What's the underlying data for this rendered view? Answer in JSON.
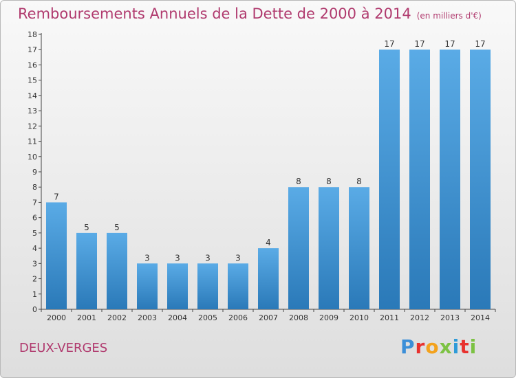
{
  "title": "Remboursements Annuels de la Dette de 2000 à 2014",
  "subtitle": "(en milliers d'€)",
  "commune": "DEUX-VERGES",
  "logo": {
    "letters": [
      "P",
      "r",
      "o",
      "x",
      "i",
      "t",
      "i"
    ],
    "colors": [
      "#3c8fd8",
      "#e8312e",
      "#f3a21d",
      "#7cc243",
      "#2e9bd8",
      "#e8312e",
      "#7cc243"
    ]
  },
  "colors": {
    "bar_top": "#5aabe6",
    "bar_bottom": "#2a79b8",
    "title": "#b03a6e"
  },
  "chart_data": {
    "type": "bar",
    "categories": [
      "2000",
      "2001",
      "2002",
      "2003",
      "2004",
      "2005",
      "2006",
      "2007",
      "2008",
      "2009",
      "2010",
      "2011",
      "2012",
      "2013",
      "2014"
    ],
    "values": [
      7,
      5,
      5,
      3,
      3,
      3,
      3,
      4,
      8,
      8,
      8,
      17,
      17,
      17,
      17
    ],
    "data_labels": [
      "7",
      "5",
      "5",
      "3",
      "3",
      "3",
      "3",
      "4",
      "8",
      "8",
      "8",
      "17",
      "17",
      "17",
      "17"
    ],
    "yticks": [
      "0",
      "1",
      "2",
      "3",
      "4",
      "5",
      "6",
      "7",
      "8",
      "9",
      "10",
      "11",
      "12",
      "13",
      "14",
      "15",
      "16",
      "17",
      "18"
    ],
    "ylim": [
      0,
      18
    ],
    "xlabel": "",
    "ylabel": "",
    "grid": false
  }
}
